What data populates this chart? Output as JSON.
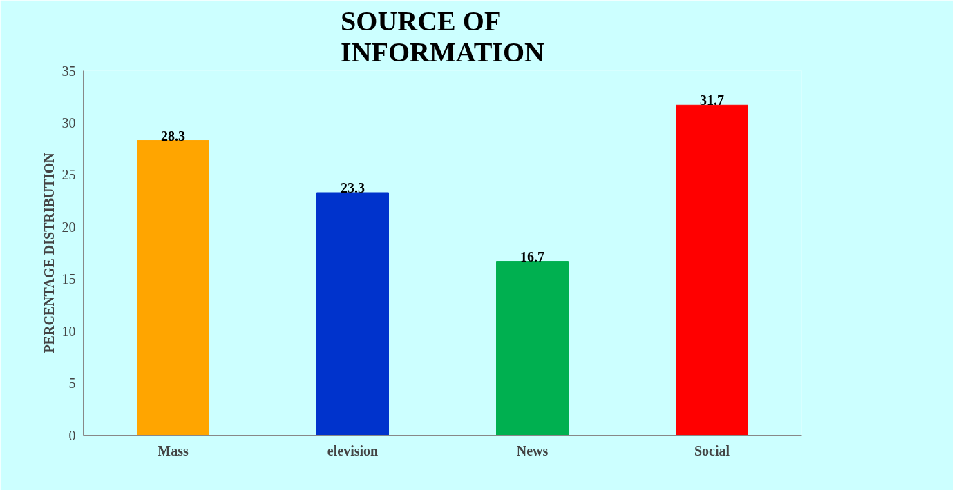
{
  "chart_data": {
    "type": "bar",
    "title": "SOURCE OF\nINFORMATION",
    "ylabel": "PERCENTAGE DISTRIBUTION",
    "categories": [
      "Mass",
      "elevision",
      "News",
      "Social"
    ],
    "values": [
      28.3,
      23.3,
      16.7,
      31.7
    ],
    "colors": [
      "#ffa500",
      "#0033cc",
      "#00b050",
      "#ff0000"
    ],
    "ylim": [
      0,
      35
    ],
    "yticks": [
      0,
      5,
      10,
      15,
      20,
      25,
      30,
      35
    ],
    "data_labels": true,
    "grid": false
  }
}
